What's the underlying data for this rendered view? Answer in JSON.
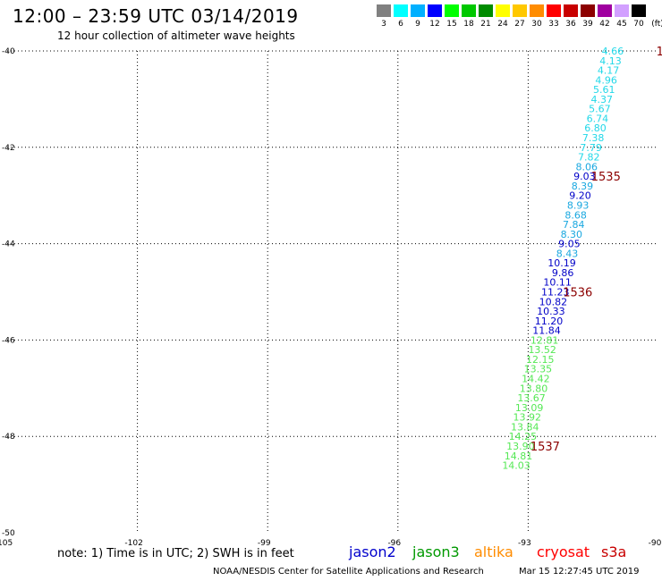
{
  "header": {
    "title": "12:00 – 23:59 UTC 03/14/2019",
    "subtitle": "12 hour collection of altimeter wave heights"
  },
  "color_scale": {
    "unit": "(ft)",
    "entries": [
      {
        "label": "3",
        "color": "#808080"
      },
      {
        "label": "6",
        "color": "#00ffff"
      },
      {
        "label": "9",
        "color": "#00b0ff"
      },
      {
        "label": "12",
        "color": "#0000ff"
      },
      {
        "label": "15",
        "color": "#00ff00"
      },
      {
        "label": "18",
        "color": "#00c800"
      },
      {
        "label": "21",
        "color": "#008c00"
      },
      {
        "label": "24",
        "color": "#ffff00"
      },
      {
        "label": "27",
        "color": "#ffc800"
      },
      {
        "label": "30",
        "color": "#ff8c00"
      },
      {
        "label": "33",
        "color": "#ff0000"
      },
      {
        "label": "36",
        "color": "#c80000"
      },
      {
        "label": "39",
        "color": "#8c0000"
      },
      {
        "label": "42",
        "color": "#a000a0"
      },
      {
        "label": "45",
        "color": "#d2a0ff"
      },
      {
        "label": "70",
        "color": "#000000"
      }
    ]
  },
  "note": "note:  1) Time is in UTC;  2) SWH is in feet",
  "legend": [
    {
      "label": "jason2",
      "color": "#0000cc"
    },
    {
      "label": "jason3",
      "color": "#009900"
    },
    {
      "label": "altika",
      "color": "#ff8c00"
    },
    {
      "label": "cryosat",
      "color": "#ff0000"
    },
    {
      "label": "s3a",
      "color": "#c80000"
    }
  ],
  "footer": {
    "credit": "NOAA/NESDIS Center for Satellite Applications and Research",
    "date": "Mar 15 12:27:45 UTC 2019"
  },
  "chart_data": {
    "type": "scatter",
    "xlim": [
      -105,
      -90
    ],
    "ylim": [
      -50,
      -40
    ],
    "x_ticks": [
      -105,
      -102,
      -99,
      -96,
      -93,
      -90
    ],
    "y_ticks": [
      -40,
      -42,
      -44,
      -46,
      -48,
      -50
    ],
    "grid": true,
    "points": [
      {
        "x": -90.8,
        "y": -40.0,
        "v": "4.66",
        "color": "#22d8e8"
      },
      {
        "x": -90.85,
        "y": -40.2,
        "v": "4.13",
        "color": "#22d8e8"
      },
      {
        "x": -90.9,
        "y": -40.4,
        "v": "4.17",
        "color": "#22d8e8"
      },
      {
        "x": -90.95,
        "y": -40.6,
        "v": "4.96",
        "color": "#22d8e8"
      },
      {
        "x": -91.0,
        "y": -40.8,
        "v": "5.61",
        "color": "#22d8e8"
      },
      {
        "x": -91.05,
        "y": -41.0,
        "v": "4.37",
        "color": "#22d8e8"
      },
      {
        "x": -91.1,
        "y": -41.2,
        "v": "5.67",
        "color": "#22d8e8"
      },
      {
        "x": -91.15,
        "y": -41.4,
        "v": "6.74",
        "color": "#22d8e8"
      },
      {
        "x": -91.2,
        "y": -41.6,
        "v": "6.80",
        "color": "#22d8e8"
      },
      {
        "x": -91.25,
        "y": -41.8,
        "v": "7.38",
        "color": "#22d8e8"
      },
      {
        "x": -91.3,
        "y": -42.0,
        "v": "7.79",
        "color": "#22d8e8"
      },
      {
        "x": -91.35,
        "y": -42.2,
        "v": "7.82",
        "color": "#22d8e8"
      },
      {
        "x": -91.4,
        "y": -42.4,
        "v": "8.06",
        "color": "#1aa8e0"
      },
      {
        "x": -91.45,
        "y": -42.6,
        "v": "9.03",
        "color": "#0000c8"
      },
      {
        "x": -91.5,
        "y": -42.8,
        "v": "8.39",
        "color": "#1aa8e0"
      },
      {
        "x": -91.55,
        "y": -43.0,
        "v": "9.20",
        "color": "#0000c8"
      },
      {
        "x": -91.6,
        "y": -43.2,
        "v": "8.93",
        "color": "#1aa8e0"
      },
      {
        "x": -91.65,
        "y": -43.4,
        "v": "8.68",
        "color": "#1aa8e0"
      },
      {
        "x": -91.7,
        "y": -43.6,
        "v": "7.84",
        "color": "#1aa8e0"
      },
      {
        "x": -91.75,
        "y": -43.8,
        "v": "8.30",
        "color": "#1aa8e0"
      },
      {
        "x": -91.8,
        "y": -44.0,
        "v": "9.05",
        "color": "#0000c8"
      },
      {
        "x": -91.85,
        "y": -44.2,
        "v": "8.43",
        "color": "#1aa8e0"
      },
      {
        "x": -91.9,
        "y": -44.4,
        "v": "10.19",
        "color": "#0000c8"
      },
      {
        "x": -91.95,
        "y": -44.6,
        "v": "9.86",
        "color": "#0000c8"
      },
      {
        "x": -92.0,
        "y": -44.8,
        "v": "10.11",
        "color": "#0000c8"
      },
      {
        "x": -92.05,
        "y": -45.0,
        "v": "11.23",
        "color": "#0000c8"
      },
      {
        "x": -92.1,
        "y": -45.2,
        "v": "10.82",
        "color": "#0000c8"
      },
      {
        "x": -92.15,
        "y": -45.4,
        "v": "10.33",
        "color": "#0000c8"
      },
      {
        "x": -92.2,
        "y": -45.6,
        "v": "11.20",
        "color": "#0000c8"
      },
      {
        "x": -92.25,
        "y": -45.8,
        "v": "11.84",
        "color": "#0000c8"
      },
      {
        "x": -92.3,
        "y": -46.0,
        "v": "12.81",
        "color": "#55e855"
      },
      {
        "x": -92.35,
        "y": -46.2,
        "v": "13.52",
        "color": "#55e855"
      },
      {
        "x": -92.4,
        "y": -46.4,
        "v": "12.15",
        "color": "#55e855"
      },
      {
        "x": -92.45,
        "y": -46.6,
        "v": "13.35",
        "color": "#55e855"
      },
      {
        "x": -92.5,
        "y": -46.8,
        "v": "14.42",
        "color": "#55e855"
      },
      {
        "x": -92.55,
        "y": -47.0,
        "v": "13.80",
        "color": "#55e855"
      },
      {
        "x": -92.6,
        "y": -47.2,
        "v": "13.67",
        "color": "#55e855"
      },
      {
        "x": -92.65,
        "y": -47.4,
        "v": "13.09",
        "color": "#55e855"
      },
      {
        "x": -92.7,
        "y": -47.6,
        "v": "13.92",
        "color": "#55e855"
      },
      {
        "x": -92.75,
        "y": -47.8,
        "v": "13.84",
        "color": "#55e855"
      },
      {
        "x": -92.8,
        "y": -48.0,
        "v": "14.25",
        "color": "#55e855"
      },
      {
        "x": -92.85,
        "y": -48.2,
        "v": "13.90",
        "color": "#55e855"
      },
      {
        "x": -92.9,
        "y": -48.4,
        "v": "14.81",
        "color": "#55e855"
      },
      {
        "x": -92.95,
        "y": -48.6,
        "v": "14.03",
        "color": "#55e855"
      }
    ],
    "time_labels": [
      {
        "label": "1535",
        "x": -91.55,
        "y": -42.6,
        "color": "#8c0000"
      },
      {
        "label": "1536",
        "x": -92.2,
        "y": -45.0,
        "color": "#8c0000"
      },
      {
        "label": "1537",
        "x": -92.95,
        "y": -48.2,
        "color": "#8c0000"
      },
      {
        "label": "1",
        "x": -90.05,
        "y": -40.0,
        "color": "#8c0000"
      }
    ]
  }
}
